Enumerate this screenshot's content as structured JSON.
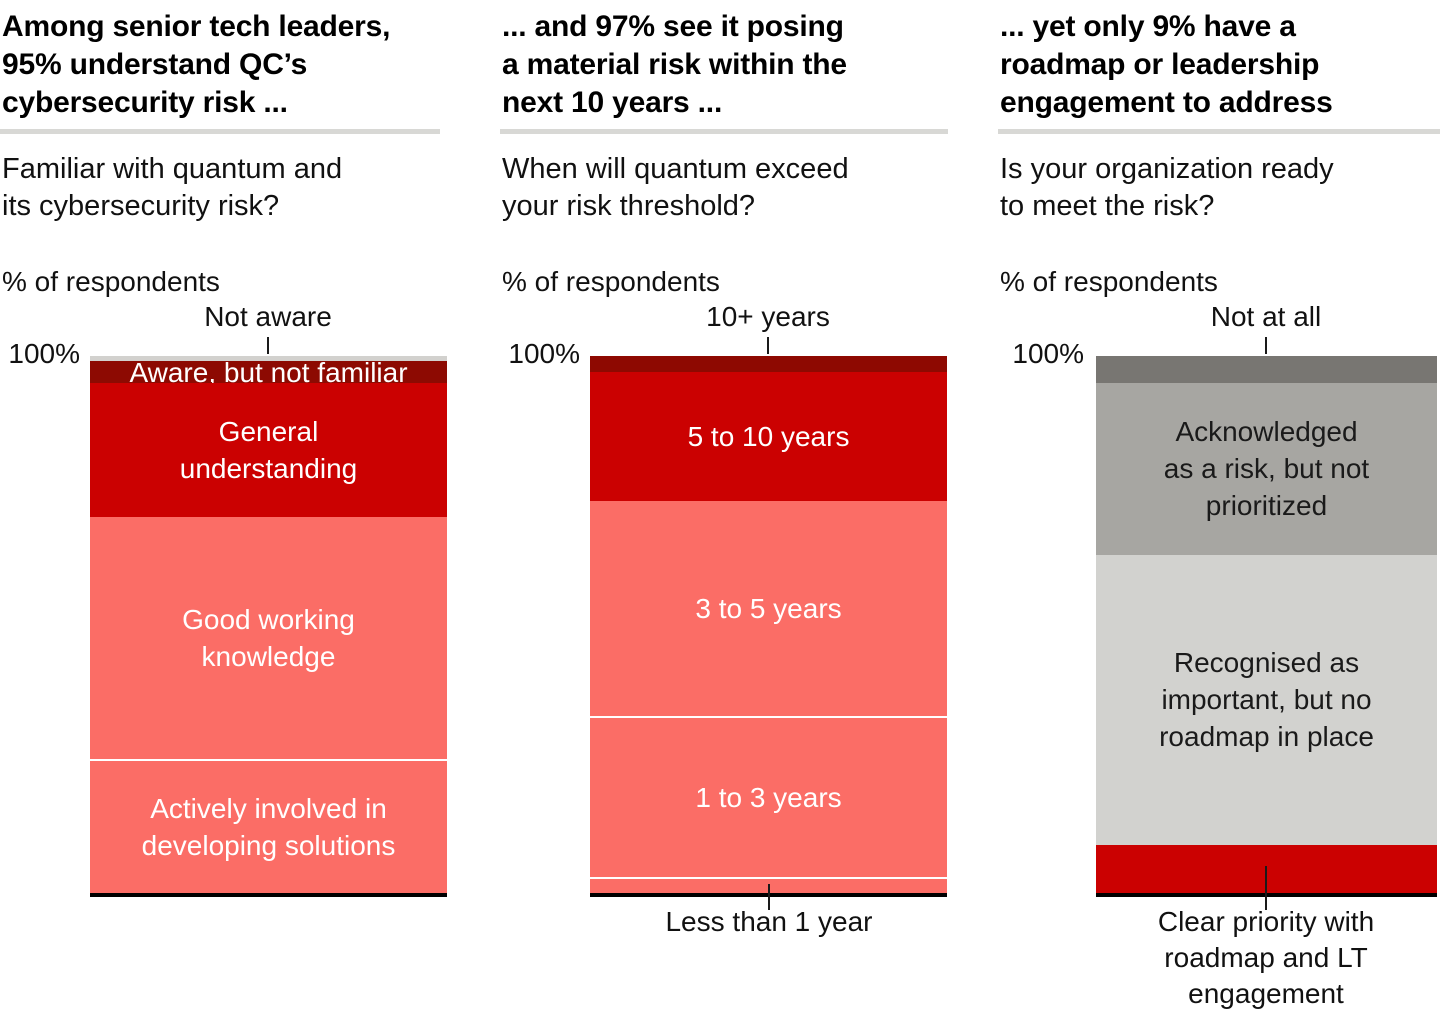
{
  "chart_data": [
    {
      "type": "bar",
      "stacked": true,
      "orientation": "vertical",
      "title": "Among senior tech leaders,\n95% understand QC’s\ncybersecurity risk ...",
      "question": "Familiar with quantum and\nits cybersecurity risk?",
      "unit_label": "% of respondents",
      "axis_top_label": "100%",
      "ylim": [
        0,
        100
      ],
      "top_annotation": "Not aware",
      "segments": [
        {
          "label": "Not aware",
          "value": 1,
          "color": "#d2d1ce",
          "text_color": null,
          "inside_label": null,
          "divider_top": false
        },
        {
          "label": "Aware, but not familiar",
          "value": 4,
          "color": "#8d0a02",
          "text_color": "#ffffff",
          "inside_label": "Aware, but not familiar",
          "divider_top": false
        },
        {
          "label": "General understanding",
          "value": 25,
          "color": "#cb0101",
          "text_color": "#ffffff",
          "inside_label": "General\nunderstanding",
          "divider_top": false
        },
        {
          "label": "Good working knowledge",
          "value": 45,
          "color": "#fb6d66",
          "text_color": "#ffffff",
          "inside_label": "Good working\nknowledge",
          "divider_top": false
        },
        {
          "label": "Actively involved in developing solutions",
          "value": 25,
          "color": "#fb6d66",
          "text_color": "#ffffff",
          "inside_label": "Actively involved in\ndeveloping solutions",
          "divider_top": true
        }
      ]
    },
    {
      "type": "bar",
      "stacked": true,
      "orientation": "vertical",
      "title": "... and 97% see it posing\na material risk within the\nnext 10 years ...",
      "question": "When will quantum exceed\nyour risk threshold?",
      "unit_label": "% of respondents",
      "axis_top_label": "100%",
      "ylim": [
        0,
        100
      ],
      "top_annotation": "10+ years",
      "bottom_annotation": "Less than 1 year",
      "segments": [
        {
          "label": "10+ years",
          "value": 3,
          "color": "#8e0901",
          "text_color": null,
          "inside_label": null,
          "divider_top": false
        },
        {
          "label": "5 to 10 years",
          "value": 24,
          "color": "#cb0101",
          "text_color": "#ffffff",
          "inside_label": "5 to 10 years",
          "divider_top": false
        },
        {
          "label": "3 to 5 years",
          "value": 40,
          "color": "#fb6d66",
          "text_color": "#ffffff",
          "inside_label": "3 to 5 years",
          "divider_top": false
        },
        {
          "label": "1 to 3 years",
          "value": 30,
          "color": "#fb6d66",
          "text_color": "#ffffff",
          "inside_label": "1 to 3 years",
          "divider_top": true
        },
        {
          "label": "Less than 1 year",
          "value": 3,
          "color": "#fb6d66",
          "text_color": null,
          "inside_label": null,
          "divider_top": true
        }
      ]
    },
    {
      "type": "bar",
      "stacked": true,
      "orientation": "vertical",
      "title": "... yet only 9% have a\nroadmap or leadership\nengagement to address",
      "question": "Is your organization ready\nto meet the risk?",
      "unit_label": "% of respondents",
      "axis_top_label": "100%",
      "ylim": [
        0,
        100
      ],
      "top_annotation": "Not at all",
      "bottom_annotation": "Clear priority with\nroadmap and LT\nengagement",
      "segments": [
        {
          "label": "Not at all",
          "value": 5,
          "color": "#787672",
          "text_color": null,
          "inside_label": null,
          "divider_top": false
        },
        {
          "label": "Acknowledged as a risk, but not prioritized",
          "value": 32,
          "color": "#a7a6a2",
          "text_color": "#1a1a1a",
          "inside_label": "Acknowledged\nas a risk, but not\nprioritized",
          "divider_top": false
        },
        {
          "label": "Recognised as important, but no roadmap in place",
          "value": 54,
          "color": "#d2d2cf",
          "text_color": "#1a1a1a",
          "inside_label": "Recognised as\nimportant, but no\nroadmap in place",
          "divider_top": false
        },
        {
          "label": "Clear priority with roadmap and LT engagement",
          "value": 9,
          "color": "#cb0101",
          "text_color": null,
          "inside_label": null,
          "divider_top": false
        }
      ]
    }
  ]
}
